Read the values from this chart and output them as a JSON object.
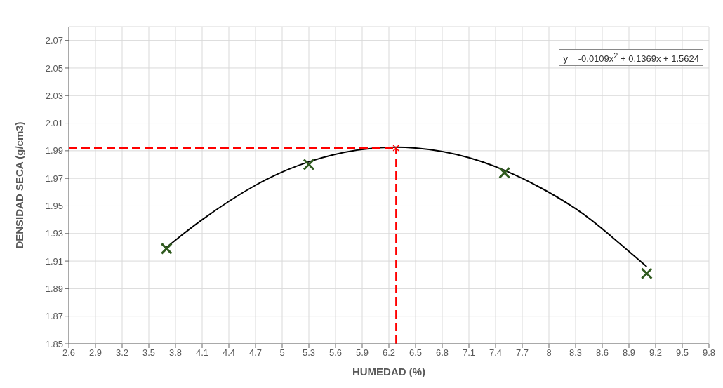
{
  "chart_data": {
    "type": "scatter",
    "xlabel": "HUMEDAD (%)",
    "ylabel": "DENSIDAD SECA (g/cm3)",
    "xlim": [
      2.6,
      9.8
    ],
    "xticks": [
      2.6,
      2.9,
      3.2,
      3.5,
      3.8,
      4.1,
      4.4,
      4.7,
      5,
      5.3,
      5.6,
      5.9,
      6.2,
      6.5,
      6.8,
      7.1,
      7.4,
      7.7,
      8,
      8.3,
      8.6,
      8.9,
      9.2,
      9.5,
      9.8
    ],
    "ylim": [
      1.85,
      2.08
    ],
    "yticks": [
      1.85,
      1.87,
      1.89,
      1.91,
      1.93,
      1.95,
      1.97,
      1.99,
      2.01,
      2.03,
      2.05,
      2.07
    ],
    "grid": true,
    "legend": false,
    "annotations": [
      "y = -0.0109x$^{2}$ + 0.1369x + 1.5624"
    ],
    "series": [
      {
        "type": "line",
        "color": "#000000",
        "marker": "none",
        "line_style": "solid",
        "x": [
          3.7,
          4.1,
          4.7,
          5.3,
          5.9,
          6.5,
          7.1,
          7.7,
          8.3,
          8.7,
          9.1
        ],
        "values": [
          1.92,
          1.94,
          1.965,
          1.982,
          1.991,
          1.992,
          1.985,
          1.97,
          1.948,
          1.928,
          1.906
        ]
      },
      {
        "type": "line",
        "color": "#ff0000",
        "marker": "none",
        "line_style": "dashed",
        "x": [
          2.6,
          6.28
        ],
        "values": [
          1.992,
          1.992
        ]
      },
      {
        "type": "line",
        "color": "#ff0000",
        "marker": "none",
        "line_style": "dashed",
        "x": [
          6.28,
          6.28
        ],
        "values": [
          1.85,
          1.992
        ]
      },
      {
        "color": "#ff0000",
        "marker": "cross",
        "x": [
          6.28
        ],
        "values": [
          1.992
        ]
      },
      {
        "color": "#2f5a1e",
        "marker": "cross",
        "x": [
          3.7,
          5.3,
          7.5,
          9.1
        ],
        "values": [
          1.919,
          1.98,
          1.974,
          1.901
        ]
      }
    ]
  }
}
